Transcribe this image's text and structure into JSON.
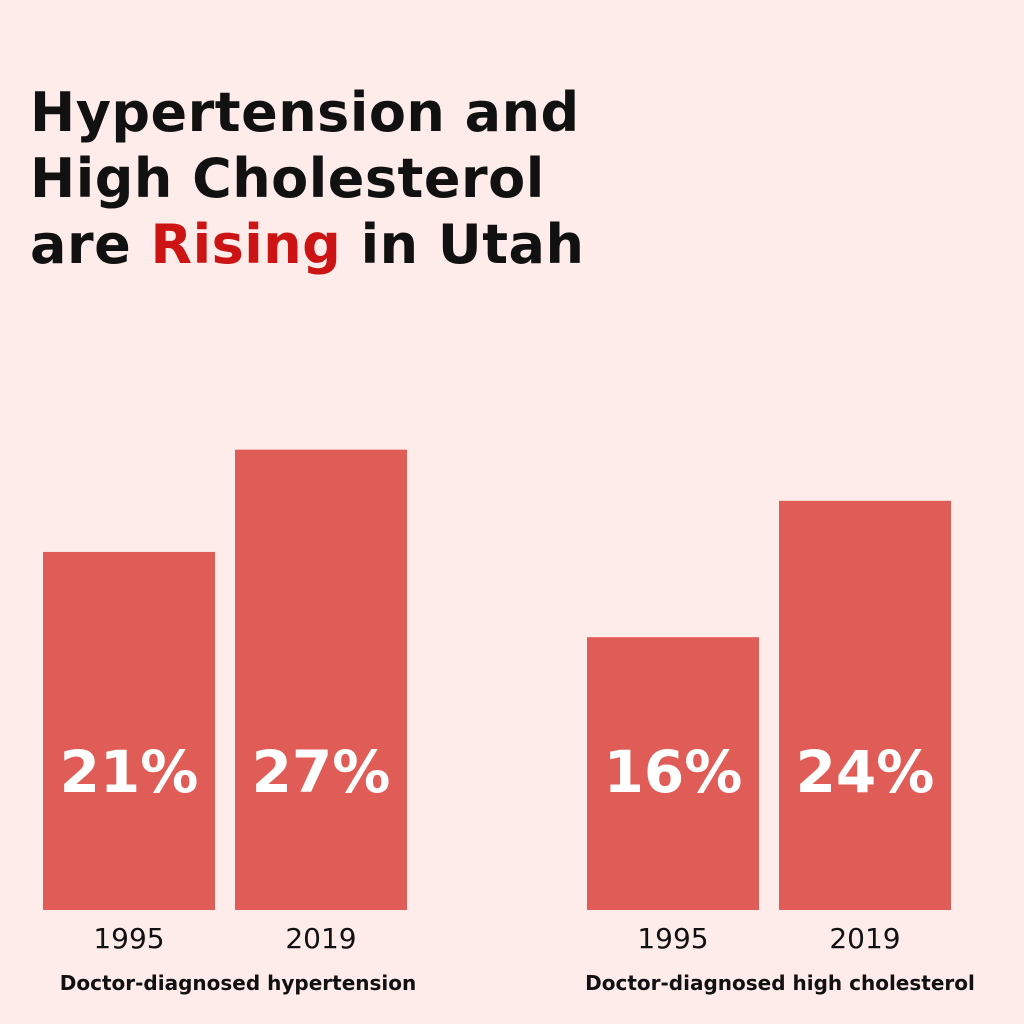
{
  "title": {
    "line1": "Hypertension and",
    "line2": "High Cholesterol",
    "line3_before": "are ",
    "line3_accent": "Rising",
    "line3_after": " in Utah"
  },
  "colors": {
    "background": "#fdecea",
    "bar": "#e05c56",
    "accent": "#cc1414",
    "text": "#111111",
    "value_label": "#ffffff"
  },
  "chart_data": {
    "type": "bar",
    "unit": "%",
    "ylim": [
      0,
      28
    ],
    "grid": false,
    "legend": "none",
    "groups": [
      {
        "label": "Doctor-diagnosed hypertension",
        "categories": [
          "1995",
          "2019"
        ],
        "values": [
          21,
          27
        ],
        "value_labels": [
          "21%",
          "27%"
        ]
      },
      {
        "label": "Doctor-diagnosed high cholesterol",
        "categories": [
          "1995",
          "2019"
        ],
        "values": [
          16,
          24
        ],
        "value_labels": [
          "16%",
          "24%"
        ]
      }
    ]
  }
}
